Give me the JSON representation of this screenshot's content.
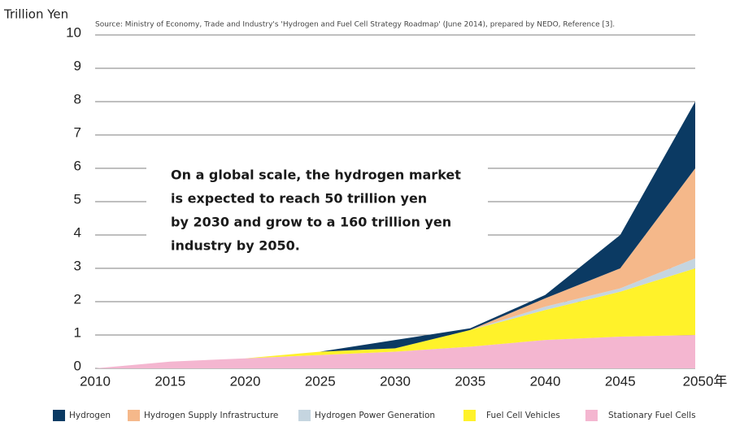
{
  "chart_data": {
    "type": "stacked_area",
    "y_label": "Trillion Yen",
    "source": "Source: Ministry of Economy, Trade and Industry's 'Hydrogen and Fuel Cell Strategy Roadmap' (June 2014), prepared by NEDO, Reference [3].",
    "annotation": [
      "On a global scale, the hydrogen market",
      "is expected to reach 50 trillion yen",
      "by 2030 and grow to a 160 trillion yen",
      "industry by 2050."
    ],
    "x": [
      2010,
      2015,
      2020,
      2025,
      2030,
      2035,
      2040,
      2045,
      2050
    ],
    "series": [
      {
        "name": "Stationary Fuel Cells",
        "color": "#f4b6d0",
        "values": [
          0,
          0.2,
          0.3,
          0.4,
          0.5,
          0.65,
          0.85,
          0.95,
          1.0
        ]
      },
      {
        "name": "Fuel Cell Vehicles",
        "color": "#fff22a",
        "values": [
          0,
          0,
          0,
          0.1,
          0.1,
          0.5,
          0.9,
          1.35,
          2.0
        ]
      },
      {
        "name": "Hydrogen Power Generation",
        "color": "#c5d5e0",
        "values": [
          0,
          0,
          0,
          0,
          0,
          0,
          0.1,
          0.1,
          0.3
        ]
      },
      {
        "name": "Hydrogen Supply Infrastructure",
        "color": "#f5b88a",
        "values": [
          0,
          0,
          0,
          0,
          0,
          0,
          0.25,
          0.6,
          2.7
        ]
      },
      {
        "name": "Hydrogen",
        "color": "#0b3a63",
        "values": [
          0,
          0,
          0,
          0,
          0.25,
          0.05,
          0.1,
          1.0,
          2.0
        ]
      }
    ],
    "xlim": [
      2010,
      2050
    ],
    "xticks": [
      2010,
      2015,
      2020,
      2025,
      2030,
      2035,
      2040,
      2045,
      {
        "value": 2050,
        "label": "2050年"
      }
    ],
    "ylim": [
      0,
      10
    ],
    "yticks": [
      0,
      1,
      2,
      3,
      4,
      5,
      6,
      7,
      8,
      9,
      10
    ],
    "grid": true
  }
}
